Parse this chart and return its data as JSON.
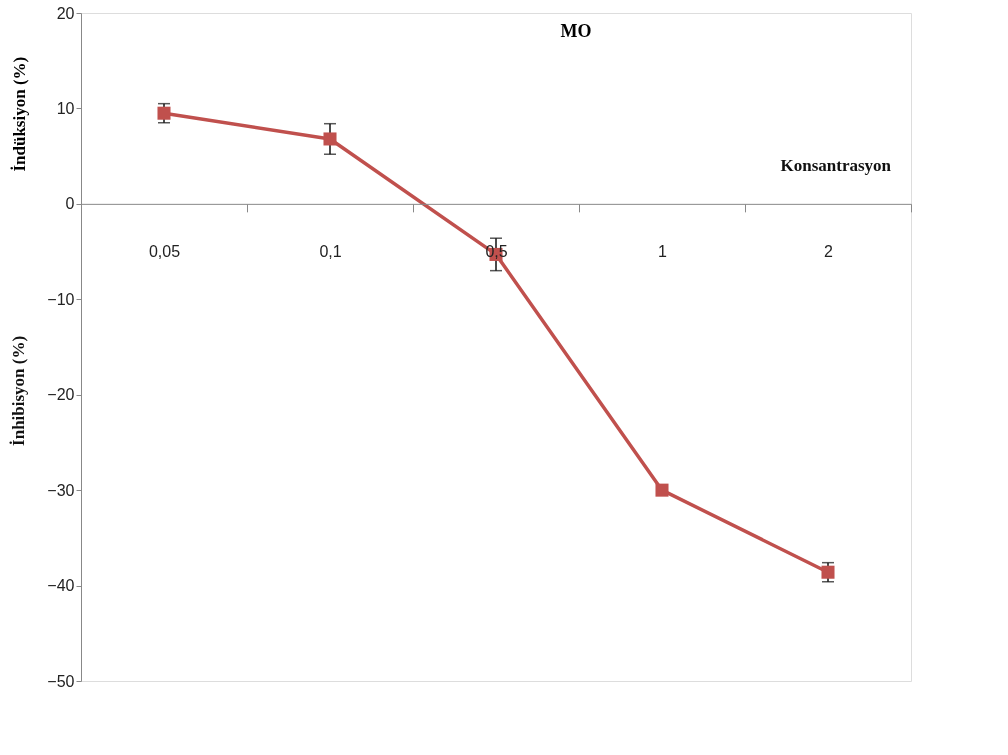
{
  "chart_data": {
    "type": "line",
    "title": "MO",
    "xlabel": "Konsantrasyon",
    "ylabel": "İndüksiyon (%)",
    "annotations": [
      "İnhibisyon (%)"
    ],
    "categories": [
      "0,05",
      "0,1",
      "0,5",
      "1",
      "2"
    ],
    "series": [
      {
        "color": "#c0504d",
        "values": [
          9.5,
          6.8,
          -5.3,
          -30,
          -38.6
        ],
        "errors": [
          1,
          1.6,
          1.7,
          null,
          1
        ]
      }
    ],
    "ylim": [
      -50,
      20
    ],
    "yticks": [
      -50,
      -40,
      -30,
      -20,
      -10,
      0,
      10,
      20
    ],
    "marker": "square",
    "line_style": "solid",
    "grid": false
  }
}
